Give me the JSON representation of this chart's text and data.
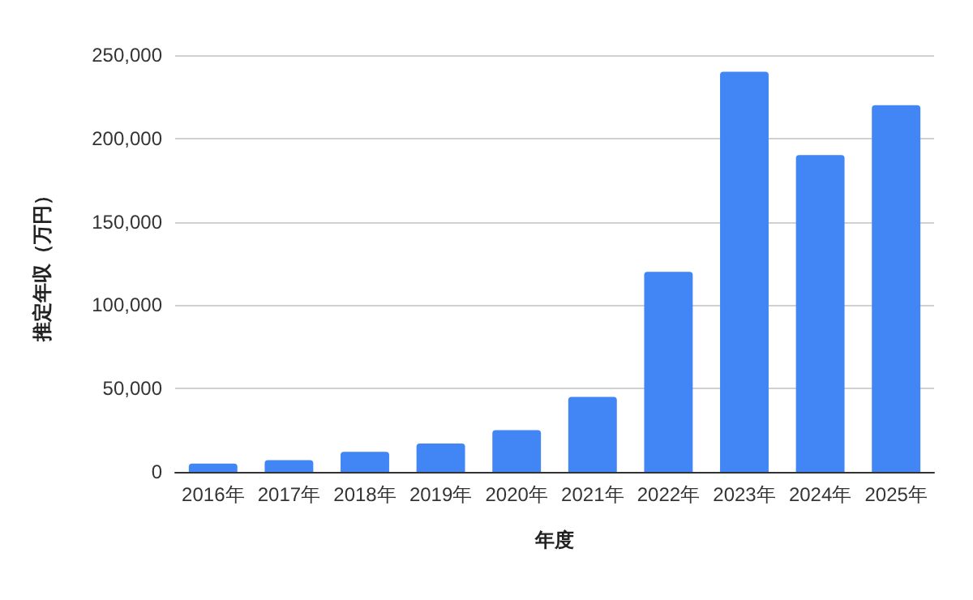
{
  "chart_data": {
    "type": "bar",
    "xlabel": "年度",
    "ylabel": "推定年収（万円）",
    "categories": [
      "2016年",
      "2017年",
      "2018年",
      "2019年",
      "2020年",
      "2021年",
      "2022年",
      "2023年",
      "2024年",
      "2025年"
    ],
    "values": [
      5000,
      7000,
      12000,
      17000,
      25000,
      45000,
      120000,
      240000,
      190000,
      220000
    ],
    "color": "#4285f4",
    "ylim": [
      0,
      250000
    ],
    "yticks": [
      0,
      {
        "value": 50000,
        "label": "50,000"
      },
      {
        "value": 100000,
        "label": "100,000"
      },
      {
        "value": 150000,
        "label": "150,000"
      },
      {
        "value": 200000,
        "label": "200,000"
      },
      {
        "value": 250000,
        "label": "250,000"
      }
    ],
    "grid": "y"
  }
}
